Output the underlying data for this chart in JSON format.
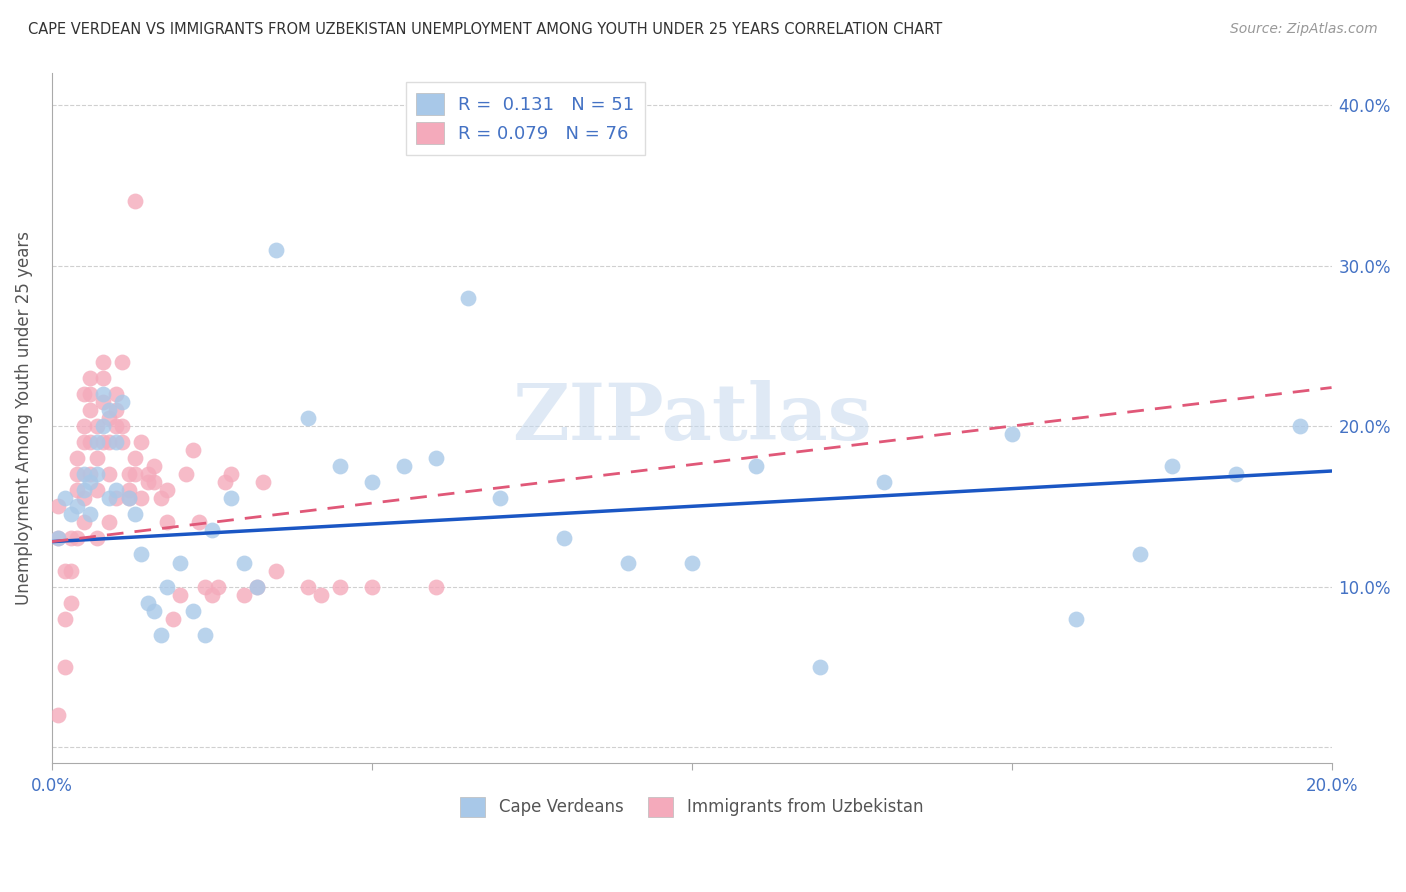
{
  "title": "CAPE VERDEAN VS IMMIGRANTS FROM UZBEKISTAN UNEMPLOYMENT AMONG YOUTH UNDER 25 YEARS CORRELATION CHART",
  "source": "Source: ZipAtlas.com",
  "ylabel": "Unemployment Among Youth under 25 years",
  "xlim": [
    0.0,
    0.2
  ],
  "ylim": [
    -0.01,
    0.42
  ],
  "blue_color": "#a8c8e8",
  "pink_color": "#f4aabb",
  "blue_line_color": "#1a56c4",
  "pink_line_color": "#e05878",
  "watermark": "ZIPatlas",
  "legend_R1": "0.131",
  "legend_N1": "51",
  "legend_R2": "0.079",
  "legend_N2": "76",
  "label1": "Cape Verdeans",
  "label2": "Immigrants from Uzbekistan",
  "blue_intercept": 0.128,
  "blue_slope": 0.22,
  "pink_intercept": 0.128,
  "pink_slope": 0.48,
  "blue_x": [
    0.001,
    0.002,
    0.003,
    0.004,
    0.005,
    0.005,
    0.006,
    0.006,
    0.007,
    0.007,
    0.008,
    0.008,
    0.009,
    0.009,
    0.01,
    0.01,
    0.011,
    0.012,
    0.013,
    0.014,
    0.015,
    0.016,
    0.017,
    0.018,
    0.02,
    0.022,
    0.024,
    0.025,
    0.028,
    0.03,
    0.032,
    0.035,
    0.04,
    0.045,
    0.05,
    0.055,
    0.06,
    0.065,
    0.07,
    0.08,
    0.09,
    0.1,
    0.11,
    0.12,
    0.13,
    0.15,
    0.16,
    0.17,
    0.175,
    0.185,
    0.195
  ],
  "blue_y": [
    0.13,
    0.155,
    0.145,
    0.15,
    0.16,
    0.17,
    0.145,
    0.165,
    0.17,
    0.19,
    0.22,
    0.2,
    0.21,
    0.155,
    0.19,
    0.16,
    0.215,
    0.155,
    0.145,
    0.12,
    0.09,
    0.085,
    0.07,
    0.1,
    0.115,
    0.085,
    0.07,
    0.135,
    0.155,
    0.115,
    0.1,
    0.31,
    0.205,
    0.175,
    0.165,
    0.175,
    0.18,
    0.28,
    0.155,
    0.13,
    0.115,
    0.115,
    0.175,
    0.05,
    0.165,
    0.195,
    0.08,
    0.12,
    0.175,
    0.17,
    0.2
  ],
  "pink_x": [
    0.001,
    0.001,
    0.001,
    0.002,
    0.002,
    0.002,
    0.003,
    0.003,
    0.003,
    0.004,
    0.004,
    0.004,
    0.004,
    0.005,
    0.005,
    0.005,
    0.005,
    0.005,
    0.006,
    0.006,
    0.006,
    0.006,
    0.006,
    0.007,
    0.007,
    0.007,
    0.007,
    0.008,
    0.008,
    0.008,
    0.008,
    0.009,
    0.009,
    0.009,
    0.009,
    0.01,
    0.01,
    0.01,
    0.01,
    0.011,
    0.011,
    0.011,
    0.012,
    0.012,
    0.012,
    0.013,
    0.013,
    0.013,
    0.014,
    0.014,
    0.015,
    0.015,
    0.016,
    0.016,
    0.017,
    0.018,
    0.018,
    0.019,
    0.02,
    0.021,
    0.022,
    0.023,
    0.024,
    0.025,
    0.026,
    0.027,
    0.028,
    0.03,
    0.032,
    0.033,
    0.035,
    0.04,
    0.042,
    0.045,
    0.05,
    0.06
  ],
  "pink_y": [
    0.13,
    0.15,
    0.02,
    0.08,
    0.11,
    0.05,
    0.09,
    0.11,
    0.13,
    0.16,
    0.17,
    0.18,
    0.13,
    0.14,
    0.155,
    0.19,
    0.2,
    0.22,
    0.17,
    0.19,
    0.21,
    0.22,
    0.23,
    0.13,
    0.16,
    0.18,
    0.2,
    0.19,
    0.215,
    0.23,
    0.24,
    0.14,
    0.17,
    0.19,
    0.205,
    0.2,
    0.21,
    0.155,
    0.22,
    0.24,
    0.19,
    0.2,
    0.155,
    0.16,
    0.17,
    0.34,
    0.18,
    0.17,
    0.19,
    0.155,
    0.165,
    0.17,
    0.165,
    0.175,
    0.155,
    0.14,
    0.16,
    0.08,
    0.095,
    0.17,
    0.185,
    0.14,
    0.1,
    0.095,
    0.1,
    0.165,
    0.17,
    0.095,
    0.1,
    0.165,
    0.11,
    0.1,
    0.095,
    0.1,
    0.1,
    0.1
  ]
}
